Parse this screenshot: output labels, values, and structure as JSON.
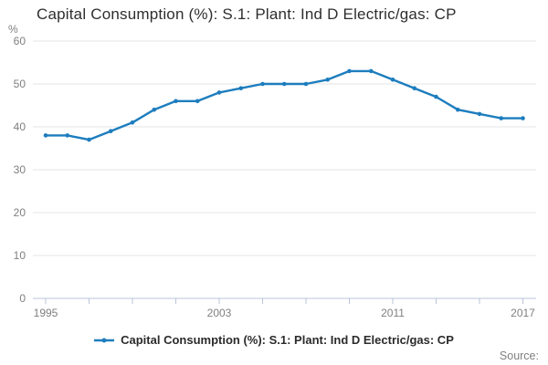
{
  "title": "Capital Consumption (%): S.1: Plant: Ind D Electric/gas: CP",
  "footer": {
    "source_label": "Source:"
  },
  "colors": {
    "background": "#ffffff",
    "line": "#1d7dbe",
    "grid": "#e6e6e6",
    "axis": "#bac4da",
    "tick_label": "#7f7f7f",
    "title_text": "#2e2e2e",
    "legend_text": "#2b2b2b",
    "source_text": "#808080"
  },
  "chart_data": {
    "type": "line",
    "title": "Capital Consumption (%): S.1: Plant: Ind D Electric/gas: CP",
    "xlabel": "",
    "ylabel": "%",
    "x": [
      1995,
      1996,
      1997,
      1998,
      1999,
      2000,
      2001,
      2002,
      2003,
      2004,
      2005,
      2006,
      2007,
      2008,
      2009,
      2010,
      2011,
      2012,
      2013,
      2014,
      2015,
      2016,
      2017
    ],
    "series": [
      {
        "name": "Capital Consumption (%): S.1: Plant: Ind D Electric/gas: CP",
        "color": "#1d7dbe",
        "values": [
          38,
          38,
          37,
          39,
          41,
          44,
          46,
          46,
          48,
          49,
          50,
          50,
          50,
          51,
          53,
          53,
          51,
          49,
          47,
          44,
          43,
          42,
          42
        ]
      }
    ],
    "ylim": [
      0,
      60
    ],
    "yticks": [
      0,
      10,
      20,
      30,
      40,
      50,
      60
    ],
    "xtick_interval": 2,
    "xtick_labels_shown": [
      1995,
      2003,
      2011,
      2017
    ],
    "grid": "horizontal",
    "legend_position": "bottom",
    "marker": "circle"
  }
}
